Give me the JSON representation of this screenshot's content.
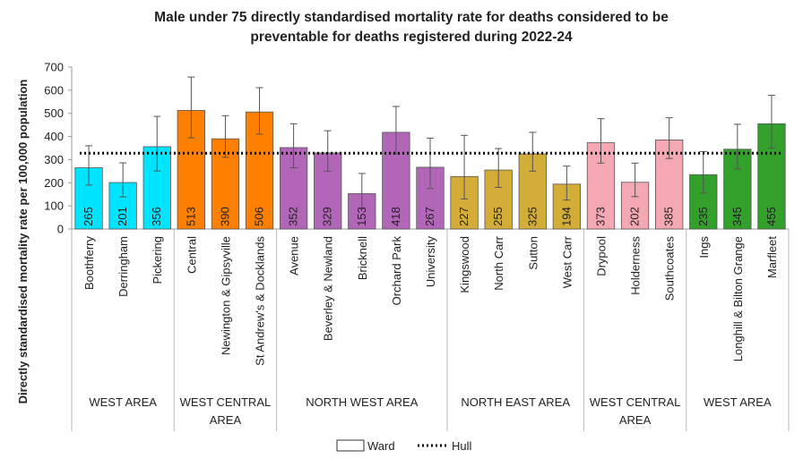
{
  "chart_data": {
    "type": "bar",
    "title": "Male under 75 directly standardised mortality rate for deaths considered to be preventable for deaths registered during 2022-24",
    "y_label": "Directly standardised mortality rate per 100,000 population",
    "ylim": [
      0,
      700
    ],
    "yticks": [
      0,
      100,
      200,
      300,
      400,
      500,
      600,
      700
    ],
    "bar_legend": "Ward",
    "reference": {
      "name": "Hull",
      "value": 328,
      "color": "#000000"
    },
    "groups": [
      {
        "label": "WEST AREA",
        "color": "#00e5ff",
        "categories": [
          "Boothferry",
          "Derringham",
          "Pickering"
        ],
        "values": [
          265,
          201,
          356
        ],
        "error_low": [
          190,
          139,
          251
        ],
        "error_high": [
          360,
          286,
          487
        ]
      },
      {
        "label": "WEST CENTRAL AREA",
        "color": "#ff8000",
        "categories": [
          "Central",
          "Newington & Gipsyville",
          "St Andrew's & Docklands"
        ],
        "values": [
          513,
          390,
          506
        ],
        "error_low": [
          394,
          310,
          410
        ],
        "error_high": [
          657,
          490,
          611
        ]
      },
      {
        "label": "NORTH WEST AREA",
        "color": "#b266b8",
        "categories": [
          "Avenue",
          "Beverley & Newland",
          "Bricknell",
          "Orchard Park",
          "University"
        ],
        "values": [
          352,
          329,
          153,
          418,
          267
        ],
        "error_low": [
          265,
          250,
          90,
          325,
          175
        ],
        "error_high": [
          455,
          425,
          240,
          530,
          393
        ]
      },
      {
        "label": "NORTH EAST AREA",
        "color": "#d4ac38",
        "categories": [
          "Kingswood",
          "North Carr",
          "Sutton",
          "West Carr"
        ],
        "values": [
          227,
          255,
          325,
          194
        ],
        "error_low": [
          130,
          180,
          250,
          125
        ],
        "error_high": [
          405,
          348,
          418,
          272
        ]
      },
      {
        "label": "WEST CENTRAL AREA",
        "color": "#f4a8b4",
        "categories": [
          "Drypool",
          "Holderness",
          "Southcoates"
        ],
        "values": [
          373,
          202,
          385
        ],
        "error_low": [
          285,
          140,
          305
        ],
        "error_high": [
          477,
          285,
          481
        ]
      },
      {
        "label": "WEST AREA",
        "color": "#33a02c",
        "categories": [
          "Ings",
          "Longhill & Bilton Grange",
          "Marfleet"
        ],
        "values": [
          235,
          345,
          455
        ],
        "error_low": [
          155,
          260,
          350
        ],
        "error_high": [
          335,
          453,
          578
        ]
      }
    ]
  }
}
